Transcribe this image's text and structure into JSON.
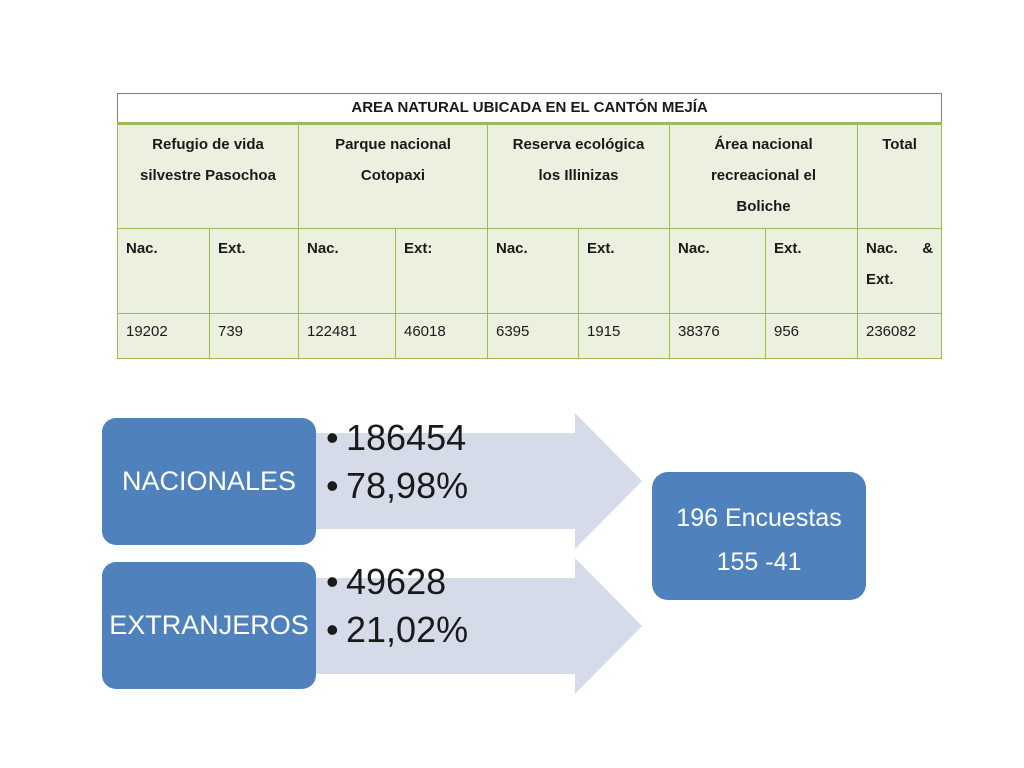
{
  "table": {
    "title": "AREA NATURAL UBICADA EN EL CANTÓN MEJÍA",
    "areas": [
      {
        "line1": "Refugio de vida",
        "line2": "silvestre Pasochoa",
        "line3": ""
      },
      {
        "line1": "Parque nacional",
        "line2": "Cotopaxi",
        "line3": ""
      },
      {
        "line1": "Reserva ecológica",
        "line2": "los Illinizas",
        "line3": ""
      },
      {
        "line1": "Área nacional",
        "line2": "recreacional el",
        "line3": "Boliche"
      },
      {
        "line1": "Total",
        "line2": "",
        "line3": ""
      }
    ],
    "sub_headers": [
      "Nac.",
      "Ext.",
      "Nac.",
      "Ext:",
      "Nac.",
      "Ext.",
      "Nac.",
      "Ext."
    ],
    "total_sub": {
      "part1": "Nac.",
      "part2": "&",
      "part3": "Ext."
    },
    "values": [
      "19202",
      "739",
      "122481",
      "46018",
      "6395",
      "1915",
      "38376",
      "956",
      "236082"
    ]
  },
  "diagram": {
    "nacionales": {
      "label": "NACIONALES",
      "count": "186454",
      "percent": "78,98%"
    },
    "extranjeros": {
      "label": "EXTRANJEROS",
      "count": "49628",
      "percent": "21,02%"
    },
    "result": {
      "line1": "196 Encuestas",
      "line2": "155 -41"
    },
    "colors": {
      "box": "#4f81bd",
      "arrow": "#d6dbea",
      "table_fill": "#ebf1de",
      "table_border": "#9bbb59"
    }
  }
}
